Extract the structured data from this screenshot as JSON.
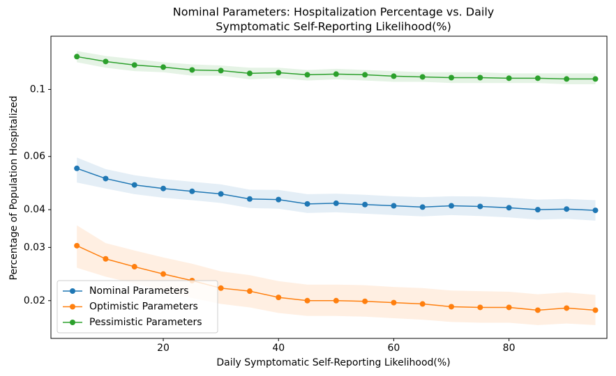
{
  "chart_data": {
    "type": "line",
    "title": [
      "Nominal Parameters: Hospitalization Percentage vs. Daily",
      "Symptomatic Self-Reporting Likelihood(%)"
    ],
    "x_label": "Daily Symptomatic Self-Reporting Likelihood(%)",
    "y_label": "Percentage of Population Hospitalized",
    "x": [
      5,
      10,
      15,
      20,
      25,
      30,
      35,
      40,
      45,
      50,
      55,
      60,
      65,
      70,
      75,
      80,
      85,
      90,
      95
    ],
    "xlim": [
      0.5,
      97
    ],
    "xticks": [
      20,
      40,
      60,
      80
    ],
    "ylim": [
      0.015,
      0.15
    ],
    "yticks": [
      0.02,
      0.03,
      0.04,
      0.06,
      0.1
    ],
    "yscale": "log",
    "legend": "lower left",
    "series": [
      {
        "name": "Nominal Parameters",
        "color": "#1f77b4",
        "values": [
          0.0548,
          0.0507,
          0.0483,
          0.047,
          0.046,
          0.0451,
          0.0434,
          0.0432,
          0.0418,
          0.042,
          0.0416,
          0.0412,
          0.0408,
          0.0412,
          0.041,
          0.0406,
          0.04,
          0.0402,
          0.0398
        ],
        "lower": [
          0.0492,
          0.047,
          0.045,
          0.0438,
          0.043,
          0.0421,
          0.0405,
          0.0403,
          0.039,
          0.0392,
          0.0388,
          0.0384,
          0.038,
          0.0384,
          0.0381,
          0.0377,
          0.0371,
          0.0373,
          0.0368
        ],
        "upper": [
          0.0595,
          0.0545,
          0.052,
          0.0505,
          0.0495,
          0.0485,
          0.0466,
          0.0465,
          0.045,
          0.0452,
          0.0448,
          0.0443,
          0.044,
          0.0443,
          0.0442,
          0.0438,
          0.0432,
          0.0434,
          0.043
        ]
      },
      {
        "name": "Optimistic Parameters",
        "color": "#ff7f0e",
        "values": [
          0.0304,
          0.0275,
          0.0259,
          0.0245,
          0.0233,
          0.022,
          0.0215,
          0.0205,
          0.02,
          0.02,
          0.0199,
          0.0197,
          0.0195,
          0.0191,
          0.019,
          0.019,
          0.0186,
          0.0189,
          0.0186
        ],
        "lower": [
          0.0257,
          0.024,
          0.0228,
          0.0215,
          0.0204,
          0.0195,
          0.019,
          0.0182,
          0.0178,
          0.0178,
          0.0177,
          0.0175,
          0.0173,
          0.017,
          0.0169,
          0.0169,
          0.0166,
          0.0168,
          0.0166
        ],
        "upper": [
          0.0355,
          0.031,
          0.0293,
          0.0278,
          0.0265,
          0.025,
          0.0243,
          0.0232,
          0.0226,
          0.0226,
          0.0225,
          0.0222,
          0.022,
          0.0216,
          0.0215,
          0.0214,
          0.021,
          0.0213,
          0.0209
        ]
      },
      {
        "name": "Pessimistic Parameters",
        "color": "#2ca02c",
        "values": [
          0.1284,
          0.1237,
          0.1204,
          0.1185,
          0.116,
          0.1154,
          0.113,
          0.1136,
          0.1118,
          0.1124,
          0.1118,
          0.1106,
          0.11,
          0.1094,
          0.1094,
          0.1089,
          0.1089,
          0.1083,
          0.1083
        ],
        "lower": [
          0.123,
          0.118,
          0.115,
          0.114,
          0.111,
          0.111,
          0.108,
          0.109,
          0.107,
          0.108,
          0.107,
          0.106,
          0.106,
          0.105,
          0.105,
          0.105,
          0.105,
          0.104,
          0.104
        ],
        "upper": [
          0.134,
          0.129,
          0.126,
          0.123,
          0.121,
          0.12,
          0.118,
          0.118,
          0.116,
          0.117,
          0.116,
          0.115,
          0.114,
          0.114,
          0.114,
          0.113,
          0.113,
          0.113,
          0.113
        ]
      }
    ]
  }
}
